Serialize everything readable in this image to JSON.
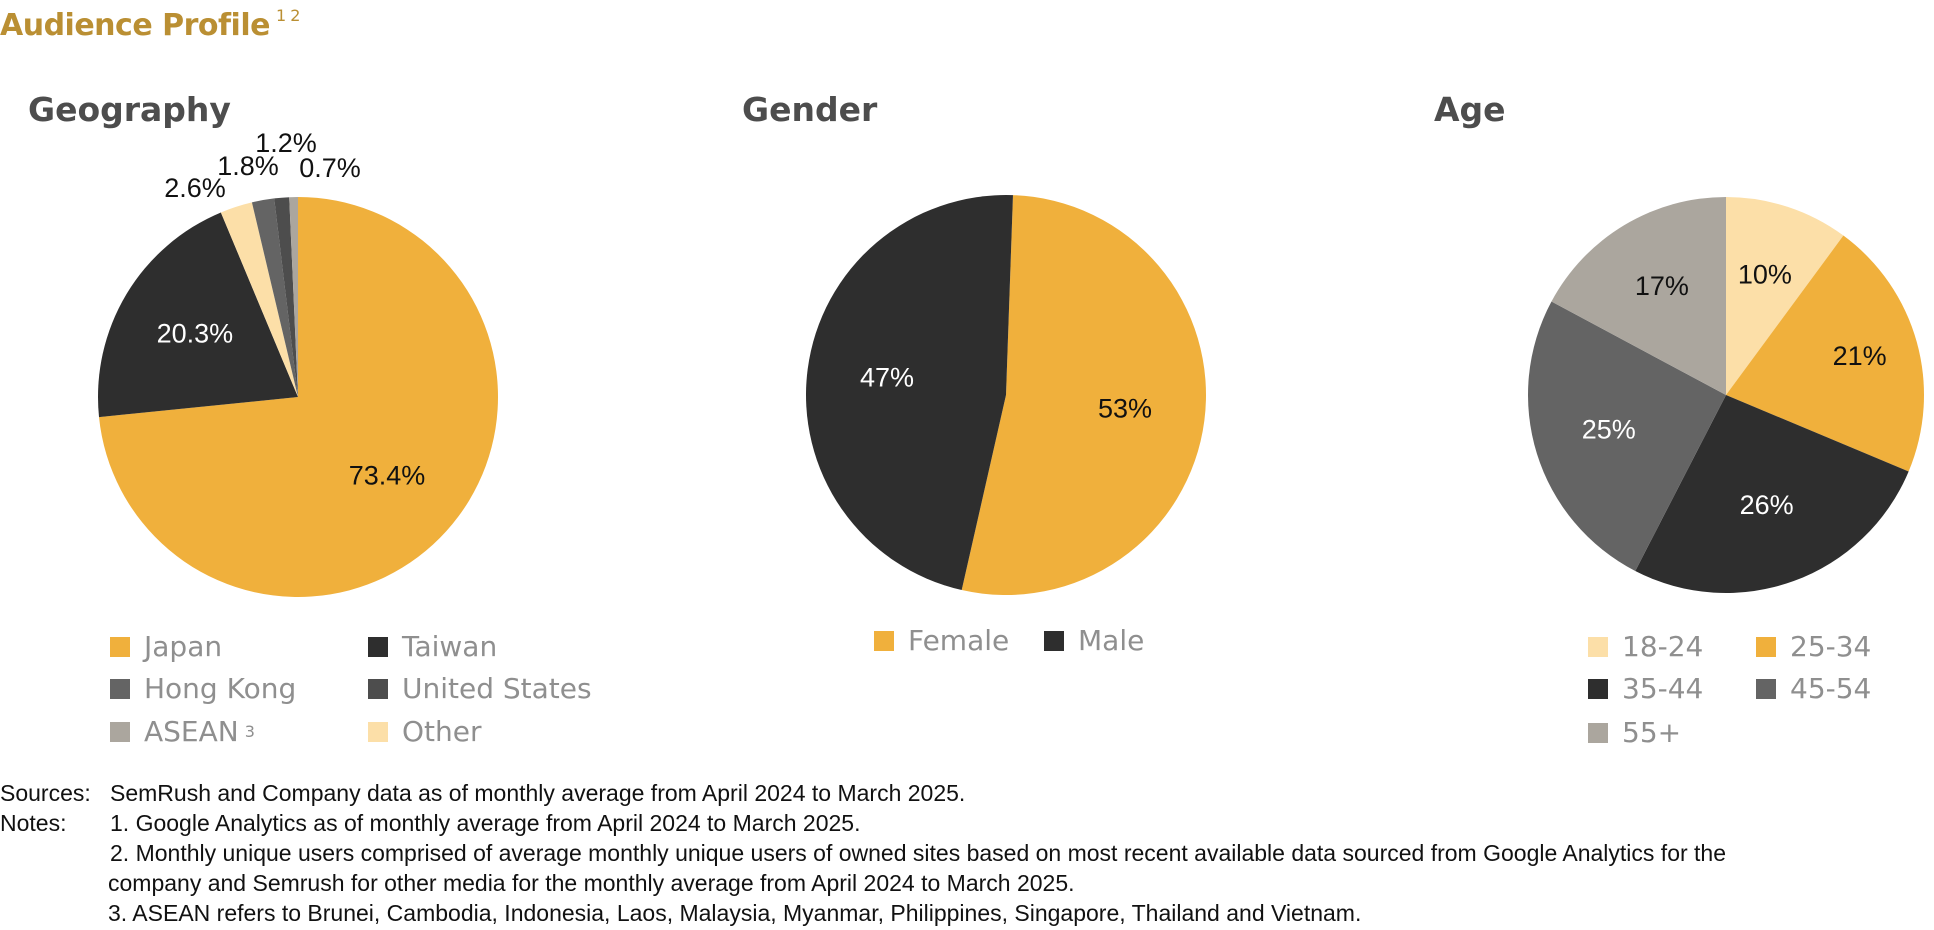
{
  "title": "Audience Profile",
  "title_notes": "1 2",
  "colors": {
    "gold": "#F0B03C",
    "dark": "#2E2E2E",
    "darkgray": "#4D4D4D",
    "midgray": "#646464",
    "lightgray": "#ABA69E",
    "cream": "#FCDFA8",
    "title": "#BA8F33"
  },
  "chart_data": [
    {
      "type": "pie",
      "title": "Geography",
      "slices": [
        {
          "label": "Japan",
          "value": 73.4,
          "text": "73.4%",
          "color": "#F0B03C"
        },
        {
          "label": "Taiwan",
          "value": 20.3,
          "text": "20.3%",
          "color": "#2E2E2E"
        },
        {
          "label": "Other",
          "value": 2.6,
          "text": "2.6%",
          "color": "#FCDFA8"
        },
        {
          "label": "Hong Kong",
          "value": 1.8,
          "text": "1.8%",
          "color": "#646464"
        },
        {
          "label": "United States",
          "value": 1.2,
          "text": "1.2%",
          "color": "#4D4D4D"
        },
        {
          "label": "ASEAN",
          "value": 0.7,
          "text": "0.7%",
          "color": "#ABA69E"
        }
      ],
      "legend": [
        {
          "label": "Japan",
          "color": "#F0B03C"
        },
        {
          "label": "Taiwan",
          "color": "#2E2E2E"
        },
        {
          "label": "Hong Kong",
          "color": "#646464"
        },
        {
          "label": "United States",
          "color": "#4D4D4D"
        },
        {
          "label": "ASEAN",
          "note": "3",
          "color": "#ABA69E"
        },
        {
          "label": "Other",
          "color": "#FCDFA8"
        }
      ]
    },
    {
      "type": "pie",
      "title": "Gender",
      "slices": [
        {
          "label": "Female",
          "value": 53,
          "text": "53%",
          "color": "#F0B03C"
        },
        {
          "label": "Male",
          "value": 47,
          "text": "47%",
          "color": "#2E2E2E"
        }
      ],
      "legend": [
        {
          "label": "Female",
          "color": "#F0B03C"
        },
        {
          "label": "Male",
          "color": "#2E2E2E"
        }
      ]
    },
    {
      "type": "pie",
      "title": "Age",
      "slices": [
        {
          "label": "18-24",
          "value": 10,
          "text": "10%",
          "color": "#FCDFA8"
        },
        {
          "label": "25-34",
          "value": 21,
          "text": "21%",
          "color": "#F0B03C"
        },
        {
          "label": "35-44",
          "value": 26,
          "text": "26%",
          "color": "#2E2E2E"
        },
        {
          "label": "45-54",
          "value": 25,
          "text": "25%",
          "color": "#646464"
        },
        {
          "label": "55+",
          "value": 17,
          "text": "17%",
          "color": "#ABA69E"
        }
      ],
      "legend": [
        {
          "label": "18-24",
          "color": "#FCDFA8"
        },
        {
          "label": "25-34",
          "color": "#F0B03C"
        },
        {
          "label": "35-44",
          "color": "#2E2E2E"
        },
        {
          "label": "45-54",
          "color": "#646464"
        },
        {
          "label": "55+",
          "color": "#ABA69E"
        }
      ]
    }
  ],
  "footnotes": {
    "sources_label": "Sources:",
    "sources_text": "SemRush and Company data as of monthly average from April 2024 to March 2025.",
    "notes_label": "Notes:",
    "note1": "1. Google Analytics as of monthly average from April 2024 to March 2025.",
    "note2_line1": "2. Monthly unique users comprised of average monthly unique users of owned sites based on most recent available data sourced from Google Analytics for the",
    "note2_line2": "company and Semrush for other media for the monthly average from April 2024 to March 2025.",
    "note3": "3. ASEAN refers to Brunei, Cambodia, Indonesia, Laos, Malaysia, Myanmar, Philippines, Singapore, Thailand and Vietnam."
  }
}
